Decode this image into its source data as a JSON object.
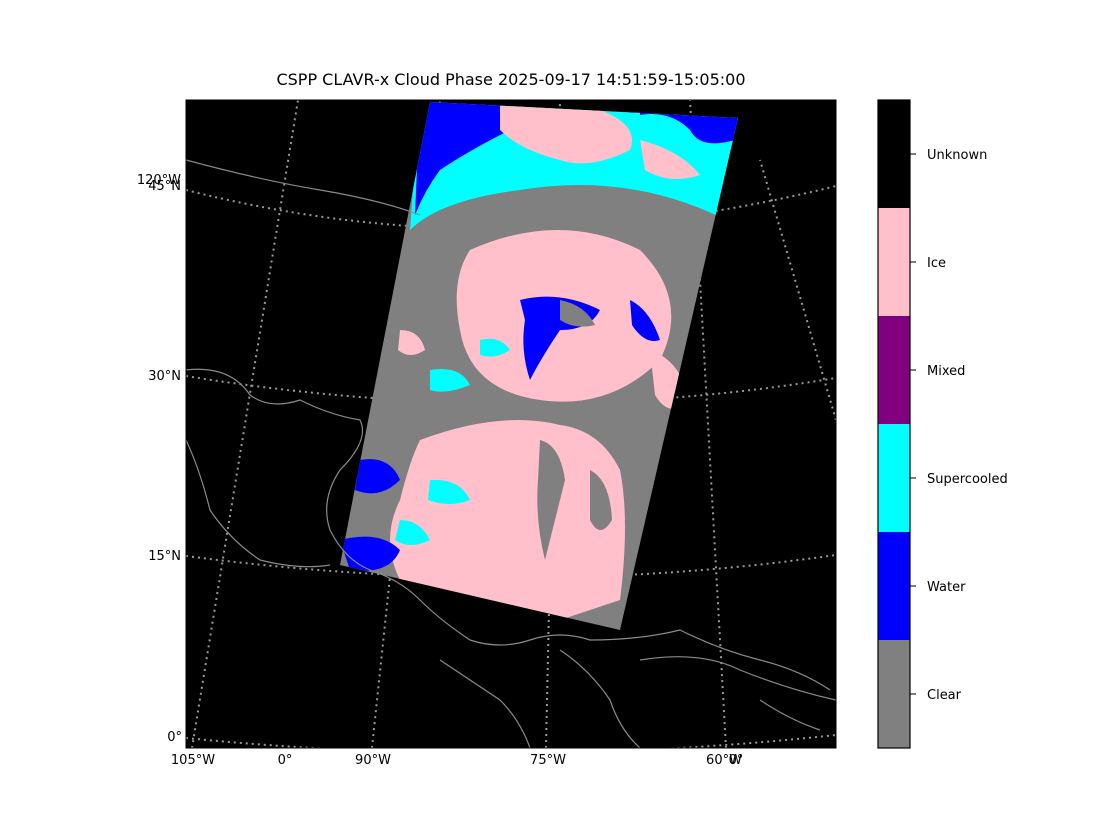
{
  "title": "CSPP CLAVR-x Cloud Phase 2025-09-17 14:51:59-15:05:00",
  "colors": {
    "background": "#000000",
    "coastline": "#8a8a8a",
    "gridline": "#9a9a9a",
    "clear": "#808080",
    "water": "#0000ff",
    "supercooled": "#00ffff",
    "mixed": "#800080",
    "ice": "#ffc0cb",
    "unknown": "#000000"
  },
  "map": {
    "lat_labels": [
      "0°",
      "15°N",
      "30°N",
      "45°N"
    ],
    "lon_labels": [
      "105°W",
      "0°",
      "90°W",
      "75°W",
      "60°W",
      "0°",
      "120°W"
    ]
  },
  "colorbar": {
    "categories": [
      {
        "label": "Unknown",
        "color": "#000000"
      },
      {
        "label": "Ice",
        "color": "#ffc0cb"
      },
      {
        "label": "Mixed",
        "color": "#800080"
      },
      {
        "label": "Supercooled",
        "color": "#00ffff"
      },
      {
        "label": "Water",
        "color": "#0000ff"
      },
      {
        "label": "Clear",
        "color": "#808080"
      }
    ]
  }
}
